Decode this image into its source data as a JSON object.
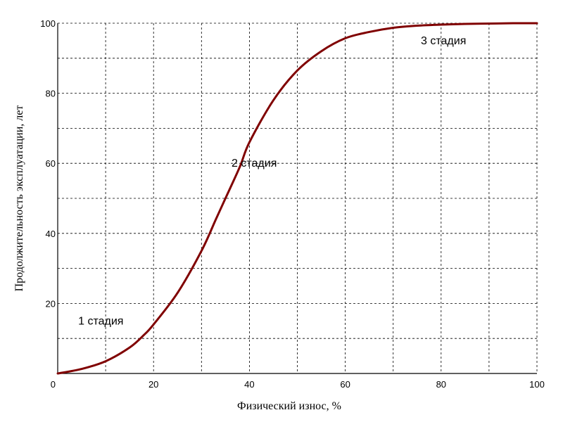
{
  "chart_data": {
    "type": "line",
    "xlabel": "Физический износ, %",
    "ylabel": "Продолжительность эксплуатации, лет",
    "xlim": [
      0,
      100
    ],
    "ylim": [
      0,
      100
    ],
    "x_ticks": [
      "0",
      "20",
      "40",
      "60",
      "80",
      "100"
    ],
    "y_ticks": [
      "20",
      "40",
      "60",
      "80",
      "100"
    ],
    "x_tick_values": [
      0,
      20,
      40,
      60,
      80,
      100
    ],
    "y_tick_values": [
      20,
      40,
      60,
      80,
      100
    ],
    "x_grid_step": 10,
    "y_grid_step": 10,
    "grid": true,
    "line_color": "#800000",
    "series": [
      {
        "x": [
          0,
          5,
          10,
          15,
          18,
          20,
          25,
          30,
          33,
          35,
          38,
          40,
          45,
          50,
          55,
          60,
          65,
          70,
          75,
          80,
          85,
          90,
          95,
          100
        ],
        "y": [
          0,
          1.3,
          3.5,
          7.4,
          11,
          14,
          23,
          35,
          44,
          50,
          59,
          66,
          78,
          86.5,
          92,
          95.7,
          97.5,
          98.7,
          99.3,
          99.6,
          99.8,
          99.9,
          100,
          100
        ]
      }
    ],
    "annotations": [
      {
        "text": "1 стадия",
        "x": 9,
        "y": 14
      },
      {
        "text": "2 стадия",
        "x": 41,
        "y": 59
      },
      {
        "text": "3 стадия",
        "x": 80.5,
        "y": 94
      }
    ]
  }
}
